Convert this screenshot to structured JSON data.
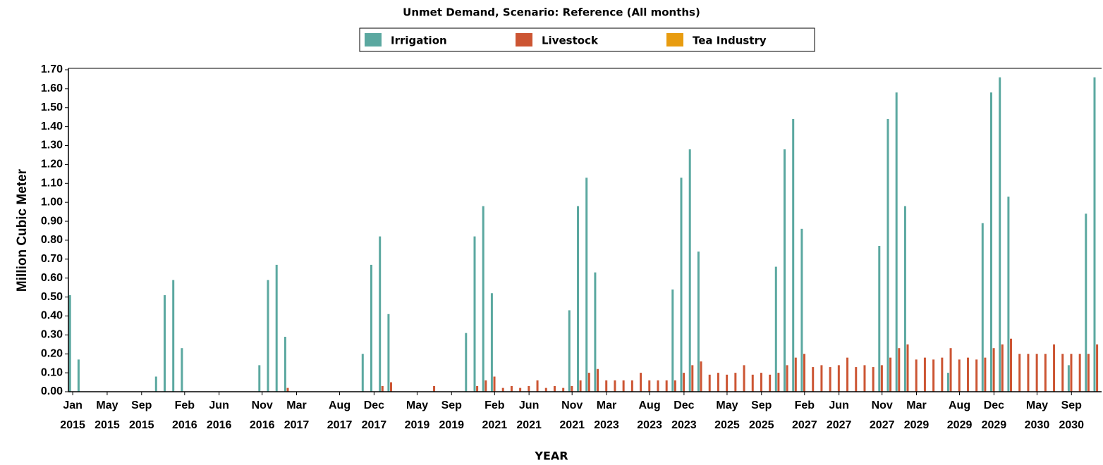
{
  "chart_data": {
    "type": "bar",
    "title": "Unmet Demand, Scenario: Reference (All months)",
    "y_label": "Million Cubic Meter",
    "x_label": "YEAR",
    "categories": [
      "Jan 2015",
      null,
      null,
      null,
      "May 2015",
      null,
      null,
      null,
      "Sep 2015",
      null,
      null,
      null,
      null,
      "Feb 2016",
      null,
      null,
      null,
      "Jun 2016",
      null,
      null,
      null,
      null,
      "Nov 2016",
      null,
      null,
      null,
      "Mar 2017",
      null,
      null,
      null,
      null,
      "Aug 2017",
      null,
      null,
      null,
      "Dec 2017",
      null,
      null,
      null,
      null,
      "May 2019",
      null,
      null,
      null,
      "Sep 2019",
      null,
      null,
      null,
      null,
      "Feb 2021",
      null,
      null,
      null,
      "Jun 2021",
      null,
      null,
      null,
      null,
      "Nov 2021",
      null,
      null,
      null,
      "Mar 2023",
      null,
      null,
      null,
      null,
      "Aug 2023",
      null,
      null,
      null,
      "Dec 2023",
      null,
      null,
      null,
      null,
      "May 2025",
      null,
      null,
      null,
      "Sep 2025",
      null,
      null,
      null,
      null,
      "Feb 2027",
      null,
      null,
      null,
      "Jun 2027",
      null,
      null,
      null,
      null,
      "Nov 2027",
      null,
      null,
      null,
      "Mar 2029",
      null,
      null,
      null,
      null,
      "Aug 2029",
      null,
      null,
      null,
      "Dec 2029",
      null,
      null,
      null,
      null,
      "May 2030",
      null,
      null,
      null,
      "Sep 2030",
      null,
      null,
      null
    ],
    "series": [
      {
        "name": "Irrigation",
        "color": "#5ba8a0",
        "values": [
          0.51,
          0.17,
          0,
          0,
          0,
          0,
          0,
          0,
          0,
          0,
          0.08,
          0.51,
          0.59,
          0.23,
          0,
          0,
          0,
          0,
          0,
          0,
          0,
          0,
          0.14,
          0.59,
          0.67,
          0.29,
          0,
          0,
          0,
          0,
          0,
          0,
          0,
          0,
          0.2,
          0.67,
          0.82,
          0.41,
          0,
          0,
          0,
          0,
          0,
          0,
          0,
          0,
          0.31,
          0.82,
          0.98,
          0.52,
          0,
          0,
          0,
          0,
          0,
          0,
          0,
          0,
          0.43,
          0.98,
          1.13,
          0.63,
          0,
          0,
          0,
          0,
          0,
          0,
          0,
          0,
          0.54,
          1.13,
          1.28,
          0.74,
          0,
          0,
          0,
          0,
          0,
          0,
          0,
          0,
          0.66,
          1.28,
          1.44,
          0.86,
          0,
          0,
          0,
          0,
          0,
          0,
          0,
          0,
          0.77,
          1.44,
          1.58,
          0.98,
          0,
          0,
          0,
          0,
          0.1,
          0,
          0,
          0,
          0.89,
          1.58,
          1.66,
          1.03,
          0,
          0,
          0,
          0,
          0,
          0,
          0.14,
          0,
          0.94,
          1.66
        ]
      },
      {
        "name": "Livestock",
        "color": "#cc5533",
        "values": [
          0,
          0,
          0,
          0,
          0,
          0,
          0,
          0,
          0,
          0,
          0,
          0,
          0,
          0,
          0,
          0,
          0,
          0,
          0,
          0,
          0,
          0,
          0,
          0,
          0,
          0.02,
          0,
          0,
          0,
          0,
          0,
          0,
          0,
          0,
          0,
          0,
          0.03,
          0.05,
          0,
          0,
          0,
          0,
          0.03,
          0,
          0,
          0,
          0,
          0.03,
          0.06,
          0.08,
          0.02,
          0.03,
          0.02,
          0.03,
          0.06,
          0.02,
          0.03,
          0.02,
          0.03,
          0.06,
          0.1,
          0.12,
          0.06,
          0.06,
          0.06,
          0.06,
          0.1,
          0.06,
          0.06,
          0.06,
          0.06,
          0.1,
          0.14,
          0.16,
          0.09,
          0.1,
          0.09,
          0.1,
          0.14,
          0.09,
          0.1,
          0.09,
          0.1,
          0.14,
          0.18,
          0.2,
          0.13,
          0.14,
          0.13,
          0.14,
          0.18,
          0.13,
          0.14,
          0.13,
          0.14,
          0.18,
          0.23,
          0.25,
          0.17,
          0.18,
          0.17,
          0.18,
          0.23,
          0.17,
          0.18,
          0.17,
          0.18,
          0.23,
          0.25,
          0.28,
          0.2,
          0.2,
          0.2,
          0.2,
          0.25,
          0.2,
          0.2,
          0.2,
          0.2,
          0.25
        ]
      },
      {
        "name": "Tea Industry",
        "color": "#e89c10",
        "values": [
          0,
          0,
          0,
          0,
          0,
          0,
          0,
          0,
          0,
          0,
          0,
          0,
          0,
          0,
          0,
          0,
          0,
          0,
          0,
          0,
          0,
          0,
          0,
          0,
          0,
          0,
          0,
          0,
          0,
          0,
          0,
          0,
          0,
          0,
          0,
          0,
          0,
          0,
          0,
          0,
          0,
          0,
          0,
          0,
          0,
          0,
          0,
          0,
          0,
          0,
          0,
          0,
          0,
          0,
          0,
          0,
          0,
          0,
          0,
          0,
          0,
          0,
          0,
          0,
          0,
          0,
          0,
          0,
          0,
          0,
          0,
          0,
          0,
          0,
          0,
          0,
          0,
          0,
          0,
          0,
          0,
          0,
          0,
          0,
          0,
          0,
          0,
          0,
          0,
          0,
          0,
          0,
          0,
          0,
          0,
          0,
          0,
          0,
          0,
          0,
          0,
          0,
          0,
          0,
          0,
          0,
          0,
          0,
          0,
          0,
          0,
          0,
          0,
          0,
          0,
          0,
          0,
          0,
          0,
          0
        ]
      }
    ],
    "ylim": [
      0,
      1.7
    ],
    "yticks": [
      {
        "value": 0,
        "label": "0.00"
      },
      {
        "value": 0.1,
        "label": "0.10"
      },
      {
        "value": 0.2,
        "label": "0.20"
      },
      {
        "value": 0.3,
        "label": "0.30"
      },
      {
        "value": 0.4,
        "label": "0.40"
      },
      {
        "value": 0.5,
        "label": "0.50"
      },
      {
        "value": 0.6,
        "label": "0.60"
      },
      {
        "value": 0.7,
        "label": "0.70"
      },
      {
        "value": 0.8,
        "label": "0.80"
      },
      {
        "value": 0.9,
        "label": "0.90"
      },
      {
        "value": 1,
        "label": "1.00"
      },
      {
        "value": 1.1,
        "label": "1.10"
      },
      {
        "value": 1.2,
        "label": "1.20"
      },
      {
        "value": 1.3,
        "label": "1.30"
      },
      {
        "value": 1.4,
        "label": "1.40"
      },
      {
        "value": 1.5,
        "label": "1.50"
      },
      {
        "value": 1.6,
        "label": "1.60"
      },
      {
        "value": 1.7,
        "label": "1.70"
      }
    ],
    "grid": false,
    "legend": "top"
  }
}
